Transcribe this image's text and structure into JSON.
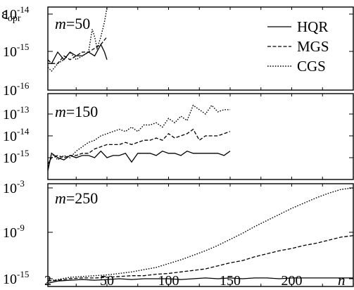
{
  "chart_data": {
    "type": "line",
    "ylabel": "ε",
    "ylabel_sub": "opr",
    "x_axis": {
      "label": "n",
      "range": [
        2,
        250
      ],
      "ticks": [
        2,
        50,
        100,
        150,
        200
      ],
      "tick_labels": [
        "2",
        "50",
        "100",
        "150",
        "200"
      ]
    },
    "legend": {
      "placement": "top-right",
      "entries": [
        {
          "name": "HQR",
          "style": "solid"
        },
        {
          "name": "MGS",
          "style": "dashed"
        },
        {
          "name": "CGS",
          "style": "dotted"
        }
      ]
    },
    "panels": [
      {
        "label_var": "m",
        "label_value": "=50",
        "y_scale": "log10",
        "ylim_exp": [
          -16,
          -13.5
        ],
        "y_ticks_exp": [
          -16,
          -15,
          -14
        ],
        "y_tick_labels": [
          "10-16",
          "10-15",
          "10-14"
        ],
        "series": [
          {
            "name": "HQR",
            "x": [
              2,
              5,
              10,
              15,
              20,
              25,
              30,
              35,
              40,
              45,
              48,
              50
            ],
            "y_exp": [
              -15.3,
              -15.3,
              -15.0,
              -15.2,
              -15.0,
              -15.1,
              -15.1,
              -15.0,
              -15.1,
              -14.8,
              -15.0,
              -15.2
            ]
          },
          {
            "name": "MGS",
            "x": [
              2,
              5,
              10,
              15,
              20,
              25,
              30,
              35,
              40,
              45,
              50
            ],
            "y_exp": [
              -15.2,
              -15.3,
              -15.3,
              -15.1,
              -15.2,
              -15.1,
              -15.0,
              -15.0,
              -14.9,
              -14.8,
              -14.6
            ]
          },
          {
            "name": "CGS",
            "x": [
              2,
              5,
              10,
              15,
              20,
              25,
              30,
              35,
              38,
              40,
              42,
              45,
              48,
              50
            ],
            "y_exp": [
              -15.4,
              -15.5,
              -15.3,
              -15.2,
              -15.0,
              -15.2,
              -15.1,
              -15.0,
              -14.4,
              -14.6,
              -14.9,
              -14.6,
              -14.2,
              -13.6
            ]
          }
        ]
      },
      {
        "label_var": "m",
        "label_value": "=150",
        "y_scale": "log10",
        "ylim_exp": [
          -15.7,
          -12.5
        ],
        "y_ticks_exp": [
          -15,
          -14,
          -13
        ],
        "y_tick_labels": [
          "10-15",
          "10-14",
          "10-13"
        ],
        "series": [
          {
            "name": "HQR",
            "x": [
              2,
              5,
              10,
              15,
              20,
              25,
              30,
              35,
              40,
              45,
              50,
              55,
              60,
              65,
              70,
              75,
              80,
              85,
              90,
              95,
              100,
              105,
              110,
              115,
              120,
              125,
              130,
              135,
              140,
              145,
              150
            ],
            "y_exp": [
              -15.6,
              -14.8,
              -15.0,
              -15.1,
              -14.9,
              -15.0,
              -14.9,
              -14.9,
              -15.0,
              -14.7,
              -15.0,
              -14.9,
              -14.9,
              -14.8,
              -15.2,
              -14.8,
              -14.8,
              -14.8,
              -14.9,
              -14.7,
              -14.8,
              -14.8,
              -14.9,
              -14.7,
              -14.8,
              -14.8,
              -14.8,
              -14.8,
              -14.8,
              -14.9,
              -14.7
            ]
          },
          {
            "name": "MGS",
            "x": [
              2,
              5,
              10,
              15,
              20,
              25,
              30,
              35,
              40,
              45,
              50,
              55,
              60,
              65,
              70,
              75,
              80,
              85,
              90,
              95,
              100,
              105,
              110,
              115,
              120,
              125,
              130,
              135,
              140,
              145,
              150
            ],
            "y_exp": [
              -15.3,
              -15.0,
              -14.9,
              -15.0,
              -14.9,
              -14.9,
              -14.8,
              -14.8,
              -14.6,
              -14.5,
              -14.4,
              -14.4,
              -14.4,
              -14.3,
              -14.4,
              -14.3,
              -14.2,
              -14.2,
              -14.1,
              -14.2,
              -13.9,
              -14.1,
              -14.0,
              -13.9,
              -13.7,
              -14.2,
              -14.0,
              -14.0,
              -14.0,
              -13.9,
              -13.8
            ]
          },
          {
            "name": "CGS",
            "x": [
              2,
              5,
              10,
              15,
              20,
              25,
              30,
              35,
              40,
              45,
              50,
              55,
              60,
              65,
              70,
              75,
              80,
              85,
              90,
              95,
              100,
              105,
              110,
              115,
              120,
              125,
              130,
              135,
              140,
              145,
              150
            ],
            "y_exp": [
              -15.5,
              -14.8,
              -15.1,
              -14.9,
              -15.0,
              -14.7,
              -14.5,
              -14.3,
              -14.2,
              -14.0,
              -13.9,
              -13.8,
              -13.7,
              -13.8,
              -13.6,
              -13.8,
              -13.5,
              -13.5,
              -13.4,
              -13.6,
              -13.2,
              -13.4,
              -13.1,
              -13.3,
              -12.6,
              -12.8,
              -13.0,
              -12.6,
              -12.9,
              -12.8,
              -12.8
            ]
          }
        ]
      },
      {
        "label_var": "m",
        "label_value": "=250",
        "y_scale": "log10",
        "ylim_exp": [
          -16.5,
          -1.5
        ],
        "y_ticks_exp": [
          -15,
          -9,
          -3
        ],
        "y_tick_labels": [
          "10-15",
          "10-9",
          "10-3"
        ],
        "series": [
          {
            "name": "HQR",
            "x": [
              2,
              10,
              20,
              30,
              40,
              50,
              60,
              70,
              80,
              90,
              100,
              110,
              120,
              130,
              140,
              150,
              160,
              170,
              180,
              190,
              200,
              210,
              220,
              230,
              240,
              250
            ],
            "y_exp": [
              -15.6,
              -15.3,
              -15.2,
              -15.1,
              -15.2,
              -15.1,
              -15.0,
              -15.1,
              -15.0,
              -15.0,
              -15.0,
              -15.1,
              -15.0,
              -14.9,
              -15.0,
              -14.9,
              -15.0,
              -14.9,
              -14.9,
              -15.0,
              -14.9,
              -14.9,
              -14.9,
              -14.9,
              -14.9,
              -14.9
            ]
          },
          {
            "name": "MGS",
            "x": [
              2,
              10,
              20,
              30,
              40,
              50,
              60,
              70,
              80,
              90,
              100,
              110,
              120,
              130,
              140,
              150,
              160,
              170,
              180,
              190,
              200,
              210,
              220,
              230,
              240,
              250
            ],
            "y_exp": [
              -15.3,
              -15.2,
              -15.0,
              -14.9,
              -14.9,
              -14.8,
              -14.7,
              -14.6,
              -14.6,
              -14.4,
              -14.3,
              -14.1,
              -13.9,
              -13.7,
              -13.3,
              -12.9,
              -12.6,
              -12.1,
              -11.7,
              -11.3,
              -11.0,
              -10.6,
              -10.3,
              -9.9,
              -9.5,
              -9.3
            ]
          },
          {
            "name": "CGS",
            "x": [
              2,
              10,
              20,
              30,
              40,
              50,
              60,
              70,
              80,
              90,
              100,
              110,
              120,
              130,
              140,
              150,
              160,
              170,
              180,
              190,
              200,
              210,
              220,
              230,
              240,
              250
            ],
            "y_exp": [
              -15.3,
              -15.1,
              -14.8,
              -14.7,
              -14.6,
              -14.5,
              -14.3,
              -14.1,
              -13.8,
              -13.5,
              -13.0,
              -12.5,
              -11.9,
              -11.3,
              -10.6,
              -9.8,
              -9.0,
              -8.1,
              -7.3,
              -6.5,
              -5.7,
              -5.0,
              -4.3,
              -3.7,
              -3.2,
              -3.0
            ]
          }
        ]
      }
    ]
  }
}
